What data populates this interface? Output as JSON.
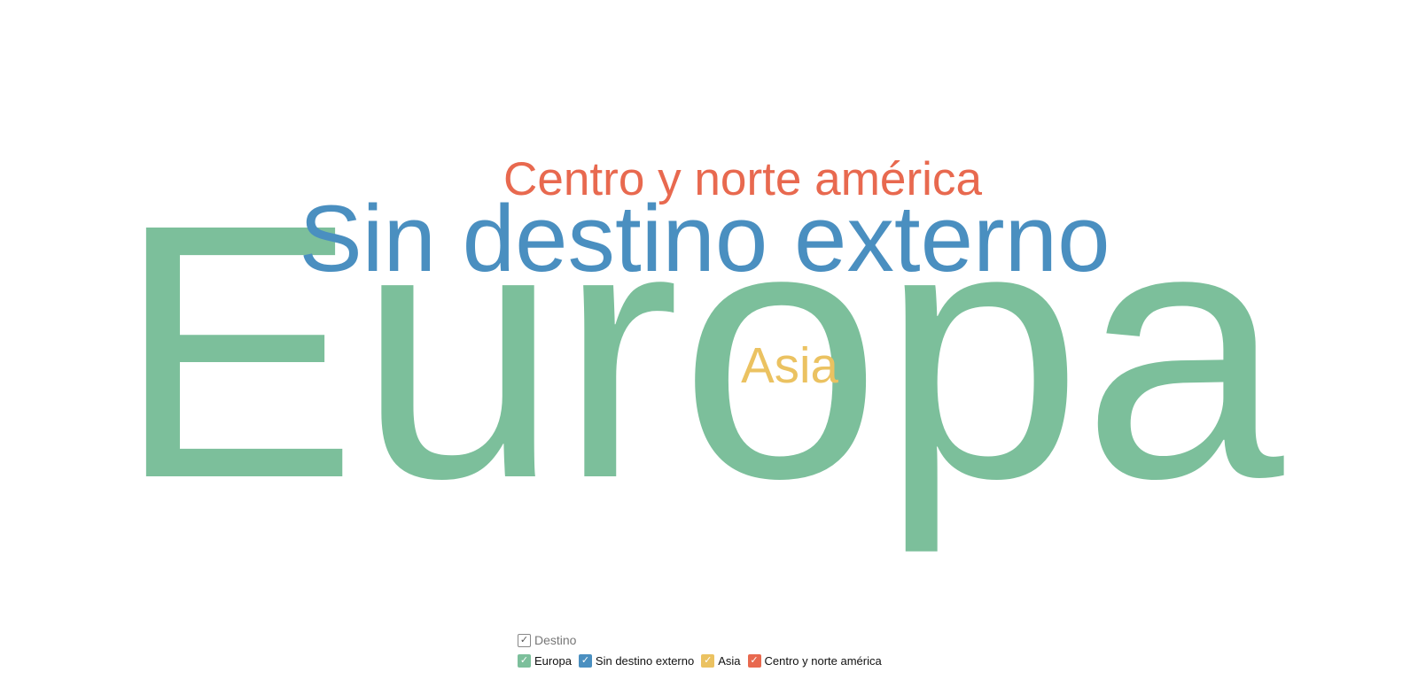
{
  "chart_data": {
    "type": "wordcloud",
    "legend_title": "Destino",
    "words": [
      {
        "text": "Europa",
        "weight": 100,
        "color": "#7cbf9b"
      },
      {
        "text": "Sin destino externo",
        "weight": 27,
        "color": "#4a8fc0"
      },
      {
        "text": "Asia",
        "weight": 16,
        "color": "#ebc261"
      },
      {
        "text": "Centro y norte américa",
        "weight": 15,
        "color": "#e8694f"
      }
    ],
    "legend": {
      "title": "Destino",
      "entries": [
        {
          "label": "Europa",
          "color": "#7cbf9b",
          "checked": true
        },
        {
          "label": "Sin destino externo",
          "color": "#4a8fc0",
          "checked": true
        },
        {
          "label": "Asia",
          "color": "#ebc261",
          "checked": true
        },
        {
          "label": "Centro y norte américa",
          "color": "#e8694f",
          "checked": true
        }
      ],
      "placement": "bottom"
    }
  },
  "icons": {
    "check": "✓"
  }
}
